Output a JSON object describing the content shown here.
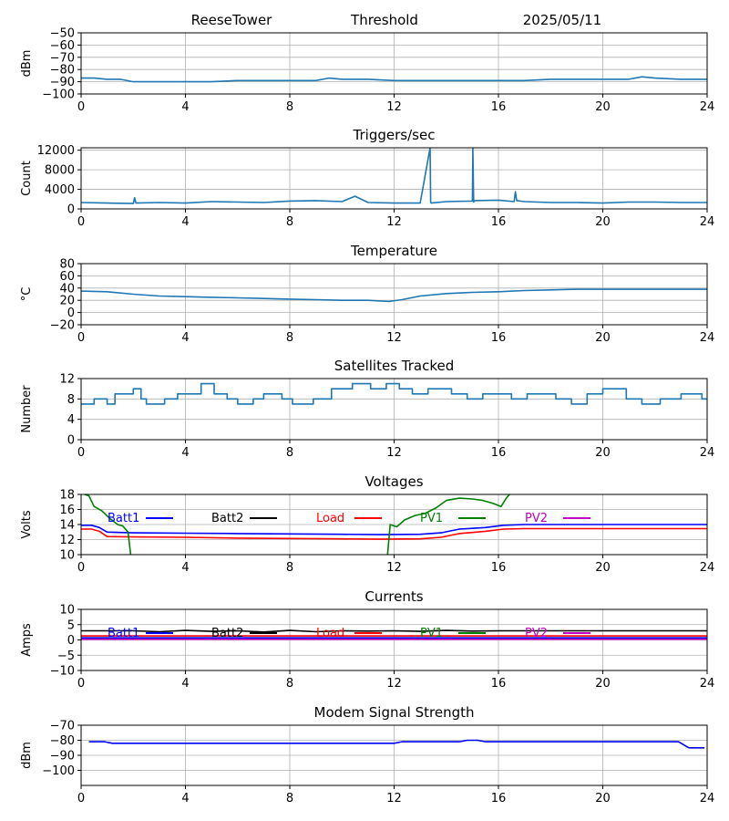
{
  "header": {
    "station": "ReeseTower",
    "metric": "Threshold",
    "date": "2025/05/11"
  },
  "chart_data": [
    {
      "id": "threshold",
      "type": "line",
      "title": "",
      "ylabel": "dBm",
      "ylim": [
        -100,
        -50
      ],
      "yticks": [
        -50,
        -60,
        -70,
        -80,
        -90,
        -100
      ],
      "xlim": [
        0,
        24
      ],
      "xticks": [
        0,
        4,
        8,
        12,
        16,
        20,
        24
      ],
      "grid": true,
      "series": [
        {
          "color": "#1f77b4",
          "x": [
            0,
            0.5,
            1,
            1.5,
            2,
            3,
            4,
            5,
            6,
            7,
            8,
            9,
            9.5,
            10,
            11,
            12,
            13,
            14,
            15,
            16,
            17,
            18,
            19,
            20,
            21,
            21.5,
            22,
            23,
            24
          ],
          "y": [
            -87,
            -87,
            -88,
            -88,
            -90,
            -90,
            -90,
            -90,
            -89,
            -89,
            -89,
            -89,
            -87,
            -88,
            -88,
            -89,
            -89,
            -89,
            -89,
            -89,
            -89,
            -88,
            -88,
            -88,
            -88,
            -86,
            -87,
            -88,
            -88
          ]
        }
      ]
    },
    {
      "id": "triggers",
      "type": "line",
      "title": "Triggers/sec",
      "ylabel": "Count",
      "ylim": [
        0,
        12500
      ],
      "yticks": [
        0,
        4000,
        8000,
        12000
      ],
      "xlim": [
        0,
        24
      ],
      "xticks": [
        0,
        4,
        8,
        12,
        16,
        20,
        24
      ],
      "grid": true,
      "series": [
        {
          "color": "#1f77b4",
          "x": [
            0,
            1,
            2,
            2.05,
            2.1,
            3,
            4,
            5,
            6,
            7,
            8,
            9,
            10,
            10.5,
            11,
            12,
            13,
            13.38,
            13.4,
            13.42,
            14,
            15,
            15.02,
            15.05,
            15.08,
            16,
            16.6,
            16.65,
            16.7,
            17,
            18,
            19,
            20,
            21,
            22,
            23,
            24
          ],
          "y": [
            1300,
            1200,
            1100,
            2300,
            1200,
            1300,
            1200,
            1500,
            1400,
            1300,
            1600,
            1700,
            1500,
            2600,
            1300,
            1200,
            1200,
            12500,
            1400,
            1200,
            1500,
            1600,
            12500,
            1400,
            1700,
            1800,
            1500,
            3500,
            1700,
            1500,
            1300,
            1300,
            1200,
            1400,
            1400,
            1300,
            1300
          ]
        }
      ]
    },
    {
      "id": "temperature",
      "type": "line",
      "title": "Temperature",
      "ylabel": "°C",
      "ylim": [
        -20,
        80
      ],
      "yticks": [
        -20,
        0,
        20,
        40,
        60,
        80
      ],
      "xlim": [
        0,
        24
      ],
      "xticks": [
        0,
        4,
        8,
        12,
        16,
        20,
        24
      ],
      "grid": true,
      "series": [
        {
          "color": "#1f77b4",
          "x": [
            0,
            1,
            2,
            3,
            4,
            5,
            6,
            7,
            8,
            9,
            10,
            11,
            11.8,
            12.3,
            13,
            14,
            15,
            16,
            17,
            18,
            19,
            20,
            21,
            22,
            23,
            24
          ],
          "y": [
            35,
            34,
            30,
            27,
            26,
            25,
            24,
            23,
            22,
            21,
            20,
            20,
            18,
            21,
            27,
            31,
            33,
            34,
            36,
            37,
            38,
            38,
            38,
            38,
            38,
            38
          ]
        }
      ]
    },
    {
      "id": "satellites",
      "type": "line",
      "title": "Satellites Tracked",
      "ylabel": "Number",
      "ylim": [
        0,
        12
      ],
      "yticks": [
        0,
        4,
        8,
        12
      ],
      "xlim": [
        0,
        24
      ],
      "xticks": [
        0,
        4,
        8,
        12,
        16,
        20,
        24
      ],
      "grid": true,
      "series": [
        {
          "color": "#1f77b4",
          "x": [
            0,
            0.5,
            0.5,
            1,
            1,
            1.3,
            1.3,
            2,
            2,
            2.3,
            2.3,
            2.5,
            2.5,
            3.2,
            3.2,
            3.7,
            3.7,
            4.6,
            4.6,
            5.1,
            5.1,
            5.6,
            5.6,
            6,
            6,
            6.6,
            6.6,
            7,
            7,
            7.7,
            7.7,
            8.1,
            8.1,
            8.9,
            8.9,
            9.6,
            9.6,
            10.4,
            10.4,
            11.1,
            11.1,
            11.7,
            11.7,
            12.2,
            12.2,
            12.7,
            12.7,
            13.3,
            13.3,
            14.2,
            14.2,
            14.8,
            14.8,
            15.4,
            15.4,
            16.5,
            16.5,
            17.1,
            17.1,
            18.2,
            18.2,
            18.8,
            18.8,
            19.4,
            19.4,
            20,
            20,
            20.9,
            20.9,
            21.5,
            21.5,
            22.2,
            22.2,
            23,
            23,
            23.8,
            23.8,
            24
          ],
          "y": [
            7,
            7,
            8,
            8,
            7,
            7,
            9,
            9,
            10,
            10,
            8,
            8,
            7,
            7,
            8,
            8,
            9,
            9,
            11,
            11,
            9,
            9,
            8,
            8,
            7,
            7,
            8,
            8,
            9,
            9,
            8,
            8,
            7,
            7,
            8,
            8,
            10,
            10,
            11,
            11,
            10,
            10,
            11,
            11,
            10,
            10,
            9,
            9,
            10,
            10,
            9,
            9,
            8,
            8,
            9,
            9,
            8,
            8,
            9,
            9,
            8,
            8,
            7,
            7,
            9,
            9,
            10,
            10,
            8,
            8,
            7,
            7,
            8,
            8,
            9,
            9,
            8,
            8
          ]
        }
      ]
    },
    {
      "id": "voltages",
      "type": "line",
      "title": "Voltages",
      "ylabel": "Volts",
      "ylim": [
        10,
        18
      ],
      "yticks": [
        10,
        12,
        14,
        16,
        18
      ],
      "xlim": [
        0,
        24
      ],
      "xticks": [
        0,
        4,
        8,
        12,
        16,
        20,
        24
      ],
      "grid": true,
      "legend": "top-inline",
      "legend_entries": [
        {
          "name": "Batt1",
          "color": "#0000ff"
        },
        {
          "name": "Batt2",
          "color": "#000000"
        },
        {
          "name": "Load",
          "color": "#ff0000"
        },
        {
          "name": "PV1",
          "color": "#008000"
        },
        {
          "name": "PV2",
          "color": "#bf00bf"
        }
      ],
      "series": [
        {
          "name": "Batt1",
          "color": "#0000ff",
          "x": [
            0,
            0.4,
            0.7,
            1,
            2,
            4,
            6,
            8,
            10,
            11.5,
            13,
            13.8,
            14.5,
            15.5,
            16.2,
            17,
            20,
            22,
            24
          ],
          "y": [
            13.9,
            13.9,
            13.6,
            13.0,
            12.9,
            12.85,
            12.8,
            12.75,
            12.7,
            12.65,
            12.7,
            12.9,
            13.4,
            13.6,
            13.9,
            14.0,
            14.0,
            14.0,
            14.0
          ]
        },
        {
          "name": "Load",
          "color": "#ff0000",
          "x": [
            0,
            0.4,
            0.7,
            1,
            2,
            4,
            6,
            8,
            10,
            11.5,
            13,
            13.8,
            14.5,
            15.5,
            16.2,
            17,
            20,
            22,
            24
          ],
          "y": [
            13.4,
            13.4,
            13.1,
            12.4,
            12.35,
            12.3,
            12.2,
            12.15,
            12.1,
            12.05,
            12.1,
            12.3,
            12.8,
            13.1,
            13.4,
            13.45,
            13.45,
            13.45,
            13.45
          ]
        },
        {
          "name": "PV1",
          "color": "#008000",
          "x": [
            0,
            0.3,
            0.5,
            0.8,
            1.1,
            1.4,
            1.6,
            1.8,
            1.9
          ],
          "y": [
            18.2,
            17.8,
            16.4,
            15.8,
            14.8,
            14.0,
            13.8,
            13.0,
            10.0
          ],
          "segment": 1
        },
        {
          "name": "PV1",
          "color": "#008000",
          "x": [
            11.75,
            11.85,
            12.1,
            12.4,
            12.8,
            13.2,
            13.6,
            14.0,
            14.5,
            15.0,
            15.4,
            15.8,
            16.1,
            16.3,
            16.5
          ],
          "y": [
            10.0,
            14.0,
            13.7,
            14.6,
            15.2,
            15.5,
            16.2,
            17.2,
            17.5,
            17.4,
            17.2,
            16.8,
            16.4,
            17.5,
            18.3
          ],
          "segment": 2
        }
      ]
    },
    {
      "id": "currents",
      "type": "line",
      "title": "Currents",
      "ylabel": "Amps",
      "ylim": [
        -10,
        10
      ],
      "yticks": [
        -10,
        -5,
        0,
        5,
        10
      ],
      "xlim": [
        0,
        24
      ],
      "xticks": [
        0,
        4,
        8,
        12,
        16,
        20,
        24
      ],
      "grid": true,
      "legend": "top-inline",
      "legend_entries": [
        {
          "name": "Batt1",
          "color": "#0000ff"
        },
        {
          "name": "Batt2",
          "color": "#000000"
        },
        {
          "name": "Load",
          "color": "#ff0000"
        },
        {
          "name": "PV1",
          "color": "#008000"
        },
        {
          "name": "PV2",
          "color": "#bf00bf"
        }
      ],
      "series": [
        {
          "name": "Batt2",
          "color": "#000000",
          "x": [
            0,
            2,
            3,
            4,
            5,
            6,
            7,
            8,
            9,
            10,
            11,
            12,
            13,
            14,
            15,
            16,
            18,
            20,
            22,
            24
          ],
          "y": [
            3.0,
            3.0,
            2.7,
            3.1,
            2.8,
            3.0,
            2.6,
            3.1,
            2.7,
            3.0,
            2.9,
            3.0,
            2.8,
            3.1,
            2.9,
            3.0,
            3.0,
            3.0,
            3.0,
            3.0
          ]
        },
        {
          "name": "Load",
          "color": "#ff0000",
          "x": [
            0,
            24
          ],
          "y": [
            1.3,
            1.3
          ]
        },
        {
          "name": "Batt1",
          "color": "#0000ff",
          "x": [
            0,
            24
          ],
          "y": [
            0.7,
            0.7
          ]
        },
        {
          "name": "PV2",
          "color": "#bf00bf",
          "x": [
            0,
            24
          ],
          "y": [
            0.2,
            0.2
          ]
        }
      ]
    },
    {
      "id": "modem",
      "type": "line",
      "title": "Modem Signal Strength",
      "ylabel": "dBm",
      "ylim": [
        -110,
        -70
      ],
      "yticks": [
        -70,
        -80,
        -90,
        -100
      ],
      "xlim": [
        0,
        24
      ],
      "xticks": [
        0,
        4,
        8,
        12,
        16,
        20,
        24
      ],
      "grid": true,
      "series": [
        {
          "color": "#0000ff",
          "x": [
            0.3,
            0.9,
            1.2,
            12,
            12.3,
            14.5,
            14.8,
            15.2,
            15.5,
            22.9,
            23.3,
            23.9
          ],
          "y": [
            -81,
            -81,
            -82,
            -82,
            -81,
            -81,
            -80,
            -80,
            -81,
            -81,
            -85,
            -85
          ]
        }
      ]
    }
  ]
}
